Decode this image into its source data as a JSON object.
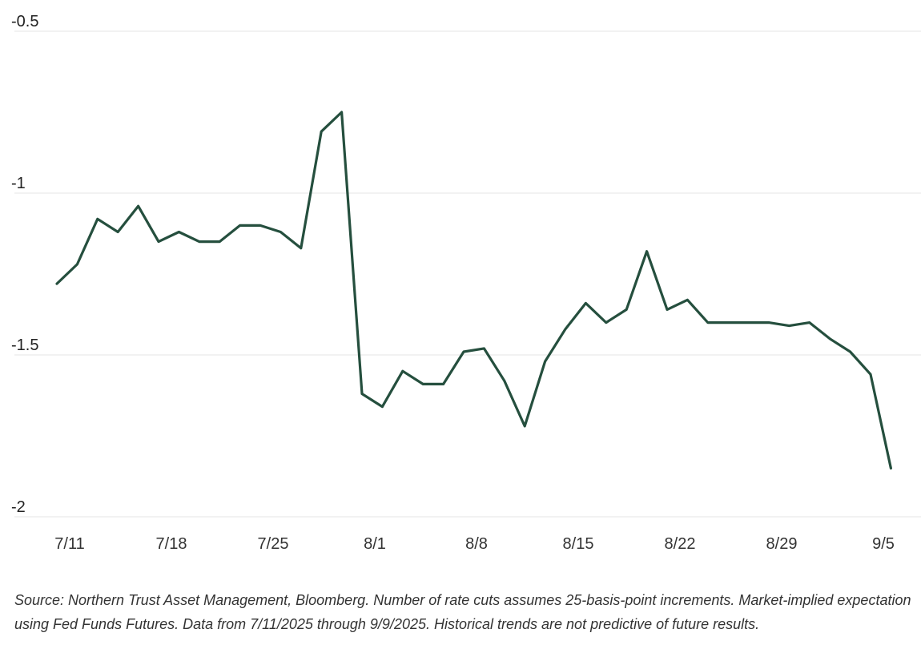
{
  "chart_data": {
    "type": "line",
    "title": "",
    "xlabel": "",
    "ylabel": "",
    "ylim": [
      -2,
      -0.5
    ],
    "yticks": [
      "-0.5",
      "-1",
      "-1.5",
      "-2"
    ],
    "ytick_values": [
      -0.5,
      -1,
      -1.5,
      -2
    ],
    "x_tick_labels": [
      {
        "label": "7/11",
        "index": 0
      },
      {
        "label": "7/18",
        "index": 5
      },
      {
        "label": "7/25",
        "index": 10
      },
      {
        "label": "8/1",
        "index": 15
      },
      {
        "label": "8/8",
        "index": 20
      },
      {
        "label": "8/15",
        "index": 25
      },
      {
        "label": "8/22",
        "index": 30
      },
      {
        "label": "8/29",
        "index": 35
      },
      {
        "label": "9/5",
        "index": 40
      }
    ],
    "grid": true,
    "series": [
      {
        "name": "",
        "color": "#254f3e",
        "values": [
          -1.28,
          -1.22,
          -1.08,
          -1.12,
          -1.04,
          -1.15,
          -1.12,
          -1.15,
          -1.15,
          -1.1,
          -1.1,
          -1.12,
          -1.17,
          -0.81,
          -0.75,
          -1.62,
          -1.66,
          -1.55,
          -1.59,
          -1.59,
          -1.49,
          -1.48,
          -1.58,
          -1.72,
          -1.52,
          -1.42,
          -1.34,
          -1.4,
          -1.36,
          -1.18,
          -1.36,
          -1.33,
          -1.4,
          -1.4,
          -1.4,
          -1.4,
          -1.41,
          -1.4,
          -1.45,
          -1.49,
          -1.56,
          -1.85
        ]
      }
    ]
  },
  "source_note": "Source: Northern Trust Asset Management, Bloomberg. Number of rate cuts assumes 25-basis-point increments. Market-implied expectation using Fed Funds Futures. Data from 7/11/2025 through 9/9/2025. Historical trends are not predictive of future results."
}
